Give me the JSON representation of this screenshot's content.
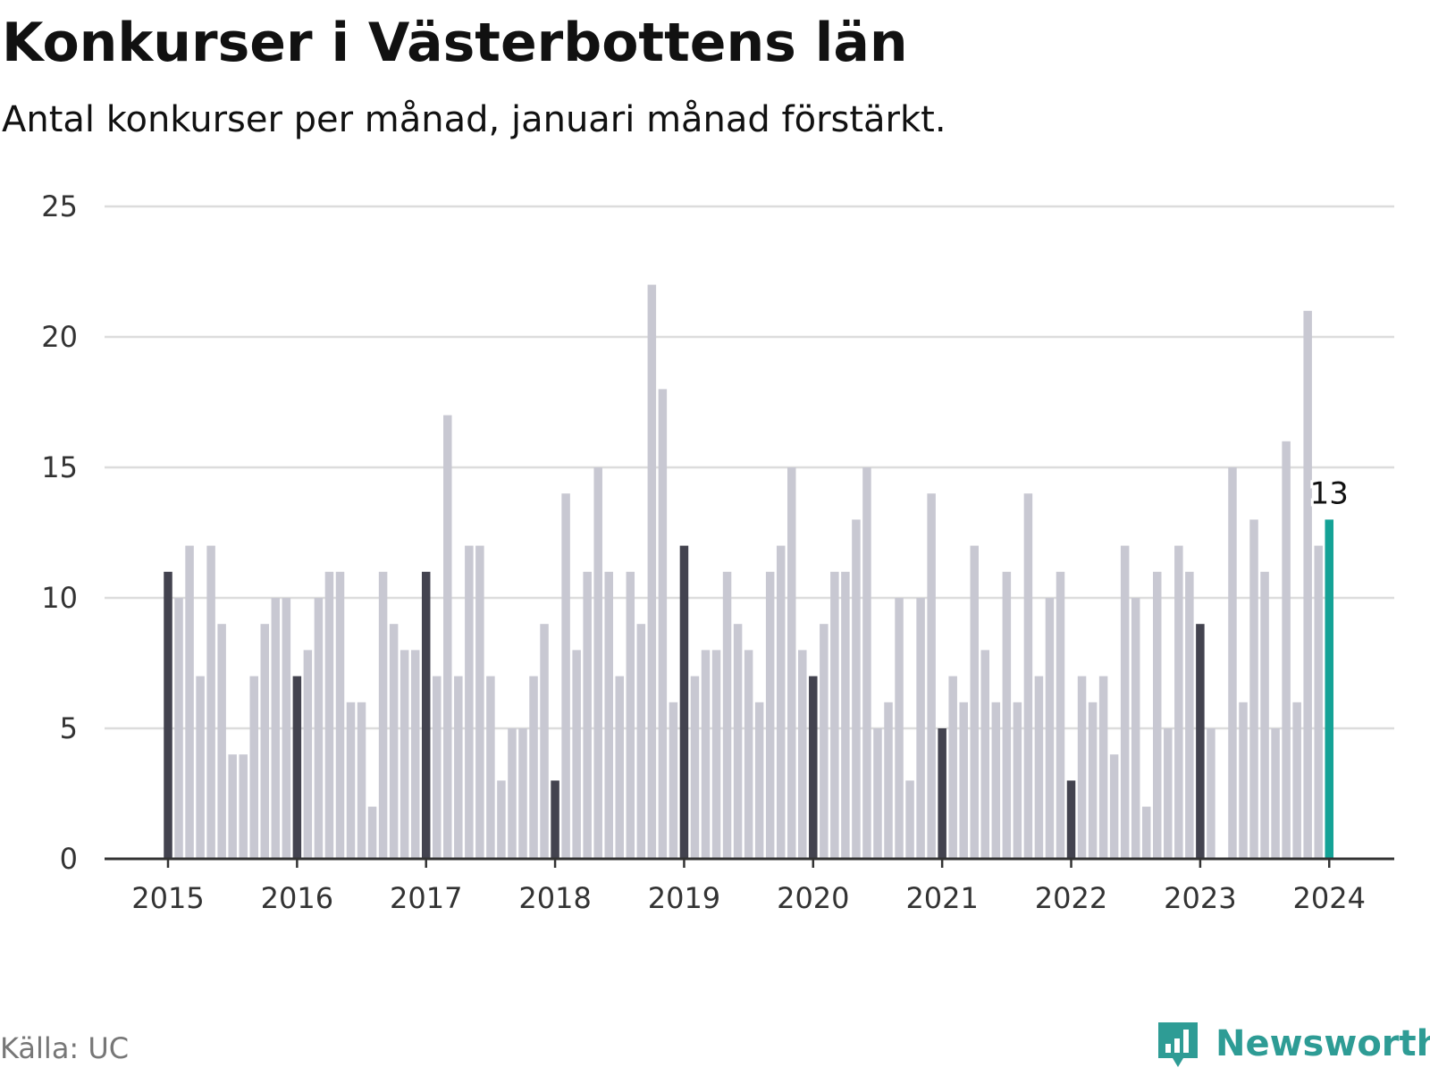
{
  "title": "Konkurser i Västerbottens län",
  "subtitle": "Antal konkurser per månad, januari månad förstärkt.",
  "source": "Källa: UC",
  "brand": {
    "name": "Newsworthy",
    "logo_icon": "newsworthy-logo-icon",
    "color": "#2e9c95"
  },
  "colors": {
    "january": "#43434f",
    "other": "#c8c8d2",
    "latest": "#14a296",
    "grid": "#dcdcdc",
    "axis": "#333333"
  },
  "chart_data": {
    "type": "bar",
    "start": "2015-01",
    "ylim": [
      0,
      25
    ],
    "yticks": [
      0,
      5,
      10,
      15,
      20,
      25
    ],
    "xticks": [
      "2015",
      "2016",
      "2017",
      "2018",
      "2019",
      "2020",
      "2021",
      "2022",
      "2023",
      "2024"
    ],
    "grid": true,
    "highlight": "January of each year",
    "latest_label": "13",
    "values": [
      11,
      10,
      12,
      7,
      12,
      9,
      4,
      4,
      7,
      9,
      10,
      10,
      7,
      8,
      10,
      11,
      11,
      6,
      6,
      2,
      11,
      9,
      8,
      8,
      11,
      7,
      17,
      7,
      12,
      12,
      7,
      3,
      5,
      5,
      7,
      9,
      3,
      14,
      8,
      11,
      15,
      11,
      7,
      11,
      9,
      22,
      18,
      6,
      12,
      7,
      8,
      8,
      11,
      9,
      8,
      6,
      11,
      12,
      15,
      8,
      7,
      9,
      11,
      11,
      13,
      15,
      5,
      6,
      10,
      3,
      10,
      14,
      5,
      7,
      6,
      12,
      8,
      6,
      11,
      6,
      14,
      7,
      10,
      11,
      3,
      7,
      6,
      7,
      4,
      12,
      10,
      2,
      11,
      5,
      12,
      11,
      9,
      5,
      0,
      15,
      6,
      13,
      11,
      5,
      16,
      6,
      21,
      12,
      13
    ]
  }
}
